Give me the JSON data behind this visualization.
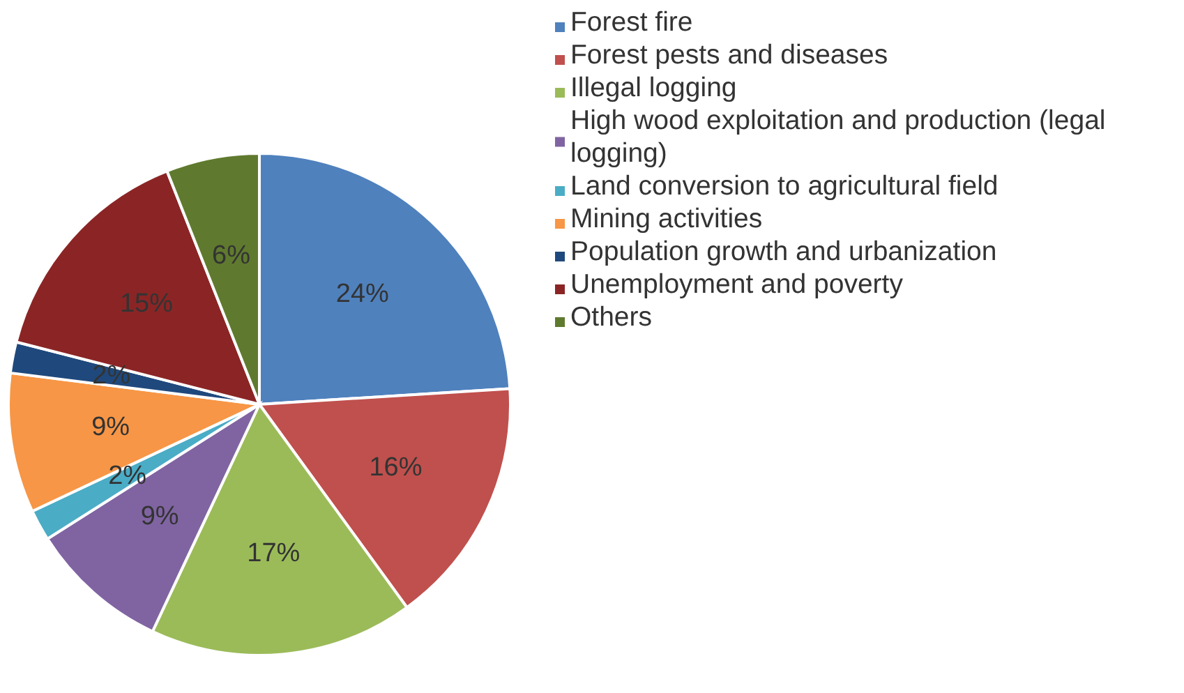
{
  "chart_data": {
    "type": "pie",
    "categories": [
      "Forest fire",
      "Forest pests and diseases",
      "Illegal logging",
      "High wood exploitation and production (legal logging)",
      "Land conversion to agricultural field",
      "Mining activities",
      "Population growth and urbanization",
      "Unemployment and poverty",
      "Others"
    ],
    "values": [
      24,
      16,
      17,
      9,
      2,
      9,
      2,
      15,
      6
    ],
    "value_labels": [
      "24%",
      "16%",
      "17%",
      "9%",
      "2%",
      "9%",
      "2%",
      "15%",
      "6%"
    ],
    "colors": [
      "#4f81bd",
      "#c0504d",
      "#9bbb59",
      "#8064a2",
      "#4bacc6",
      "#f79646",
      "#1f497d",
      "#8b2525",
      "#5f7a2e"
    ],
    "legend": "right"
  }
}
